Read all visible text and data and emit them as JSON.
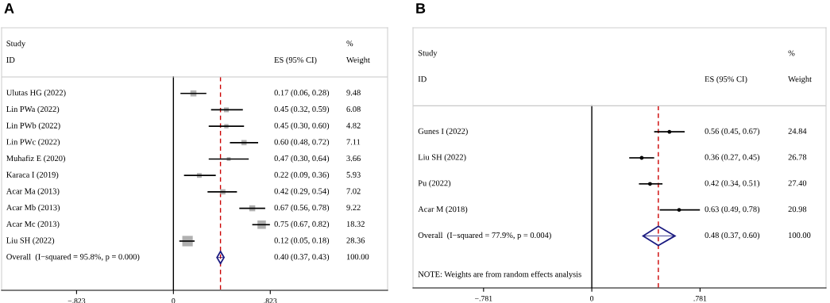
{
  "chart_data": [
    {
      "type": "scatter",
      "title": "A",
      "orientation": "horizontal",
      "categories": [
        "Ulutas HG (2022)",
        "Lin PWa (2022)",
        "Lin PWb (2022)",
        "Lin PWc (2022)",
        "Muhafiz E (2020)",
        "Karaca I (2019)",
        "Acar Ma (2013)",
        "Acar Mb (2013)",
        "Acar Mc (2013)",
        "Liu SH (2022)",
        "Overall  (I−squared = 95.8%, p = 0.000)"
      ],
      "series": [
        {
          "type": "bubble",
          "color": "#b0b0b0",
          "marker": "square",
          "values": [
            0.17,
            0.45,
            0.45,
            0.6,
            0.47,
            0.22,
            0.42,
            0.67,
            0.75,
            0.12,
            null
          ],
          "errors": [
            [
              0.06,
              0.28
            ],
            [
              0.32,
              0.59
            ],
            [
              0.3,
              0.6
            ],
            [
              0.48,
              0.72
            ],
            [
              0.3,
              0.64
            ],
            [
              0.09,
              0.36
            ],
            [
              0.29,
              0.54
            ],
            [
              0.56,
              0.78
            ],
            [
              0.67,
              0.82
            ],
            [
              0.05,
              0.18
            ],
            null
          ],
          "sizes": [
            0.334,
            0.214,
            0.17,
            0.251,
            0.129,
            0.209,
            0.248,
            0.325,
            0.646,
            1,
            null
          ]
        },
        {
          "type": "scatter",
          "color": "#1a1a80",
          "marker": "diamond",
          "values": [
            null,
            null,
            null,
            null,
            null,
            null,
            null,
            null,
            null,
            null,
            0.4
          ],
          "errors": [
            null,
            null,
            null,
            null,
            null,
            null,
            null,
            null,
            null,
            null,
            [
              0.37,
              0.43
            ]
          ]
        }
      ],
      "xlim": [
        -1.46,
        1.82
      ],
      "xticks": [
        {
          "value": -0.823,
          "label": "−.823"
        },
        {
          "value": 0,
          "label": "0"
        },
        {
          "value": 0.823,
          "label": ".823"
        }
      ],
      "ref_lines": [
        {
          "axis": "x",
          "value": 0,
          "color": "#000000",
          "line_style": "solid"
        },
        {
          "axis": "x",
          "value": 0.4,
          "color": "#cc0000",
          "line_style": "dashed"
        }
      ],
      "annotations": [
        "0.17 (0.06, 0.28)",
        "9.48",
        "0.45 (0.32, 0.59)",
        "6.08",
        "0.45 (0.30, 0.60)",
        "4.82",
        "0.60 (0.48, 0.72)",
        "7.11",
        "0.47 (0.30, 0.64)",
        "3.66",
        "0.22 (0.09, 0.36)",
        "5.93",
        "0.42 (0.29, 0.54)",
        "7.02",
        "0.67 (0.56, 0.78)",
        "9.22",
        "0.75 (0.67, 0.82)",
        "18.32",
        "0.12 (0.05, 0.18)",
        "28.36",
        "0.40 (0.37, 0.43)",
        "100.00",
        "Study",
        "ID",
        "ES (95% CI)",
        "%",
        "Weight"
      ]
    },
    {
      "type": "scatter",
      "title": "B",
      "orientation": "horizontal",
      "categories": [
        "Gunes I (2022)",
        "Liu SH (2022)",
        "Pu (2022)",
        "Acar M (2018)",
        "Overall  (I−squared = 77.9%, p = 0.004)"
      ],
      "series": [
        {
          "type": "scatter",
          "color": "#000000",
          "marker": "circle",
          "values": [
            0.56,
            0.36,
            0.42,
            0.63,
            null
          ],
          "errors": [
            [
              0.45,
              0.67
            ],
            [
              0.27,
              0.45
            ],
            [
              0.34,
              0.51
            ],
            [
              0.49,
              0.78
            ],
            null
          ]
        },
        {
          "type": "scatter",
          "color": "#1a1a80",
          "marker": "diamond",
          "values": [
            null,
            null,
            null,
            null,
            0.48
          ],
          "errors": [
            null,
            null,
            null,
            null,
            [
              0.37,
              0.6
            ]
          ]
        }
      ],
      "xlim": [
        -1.29,
        1.69
      ],
      "xticks": [
        {
          "value": -0.781,
          "label": "−.781"
        },
        {
          "value": 0,
          "label": "0"
        },
        {
          "value": 0.781,
          "label": ".781"
        }
      ],
      "ref_lines": [
        {
          "axis": "x",
          "value": 0,
          "color": "#000000",
          "line_style": "solid"
        },
        {
          "axis": "x",
          "value": 0.48,
          "color": "#cc0000",
          "line_style": "dashed"
        }
      ],
      "annotations": [
        "0.56 (0.45, 0.67)",
        "24.84",
        "0.36 (0.27, 0.45)",
        "26.78",
        "0.42 (0.34, 0.51)",
        "27.40",
        "0.63 (0.49, 0.78)",
        "20.98",
        "0.48 (0.37, 0.60)",
        "100.00",
        "Study",
        "ID",
        "ES (95% CI)",
        "%",
        "Weight",
        "NOTE: Weights are from random effects analysis"
      ]
    }
  ]
}
